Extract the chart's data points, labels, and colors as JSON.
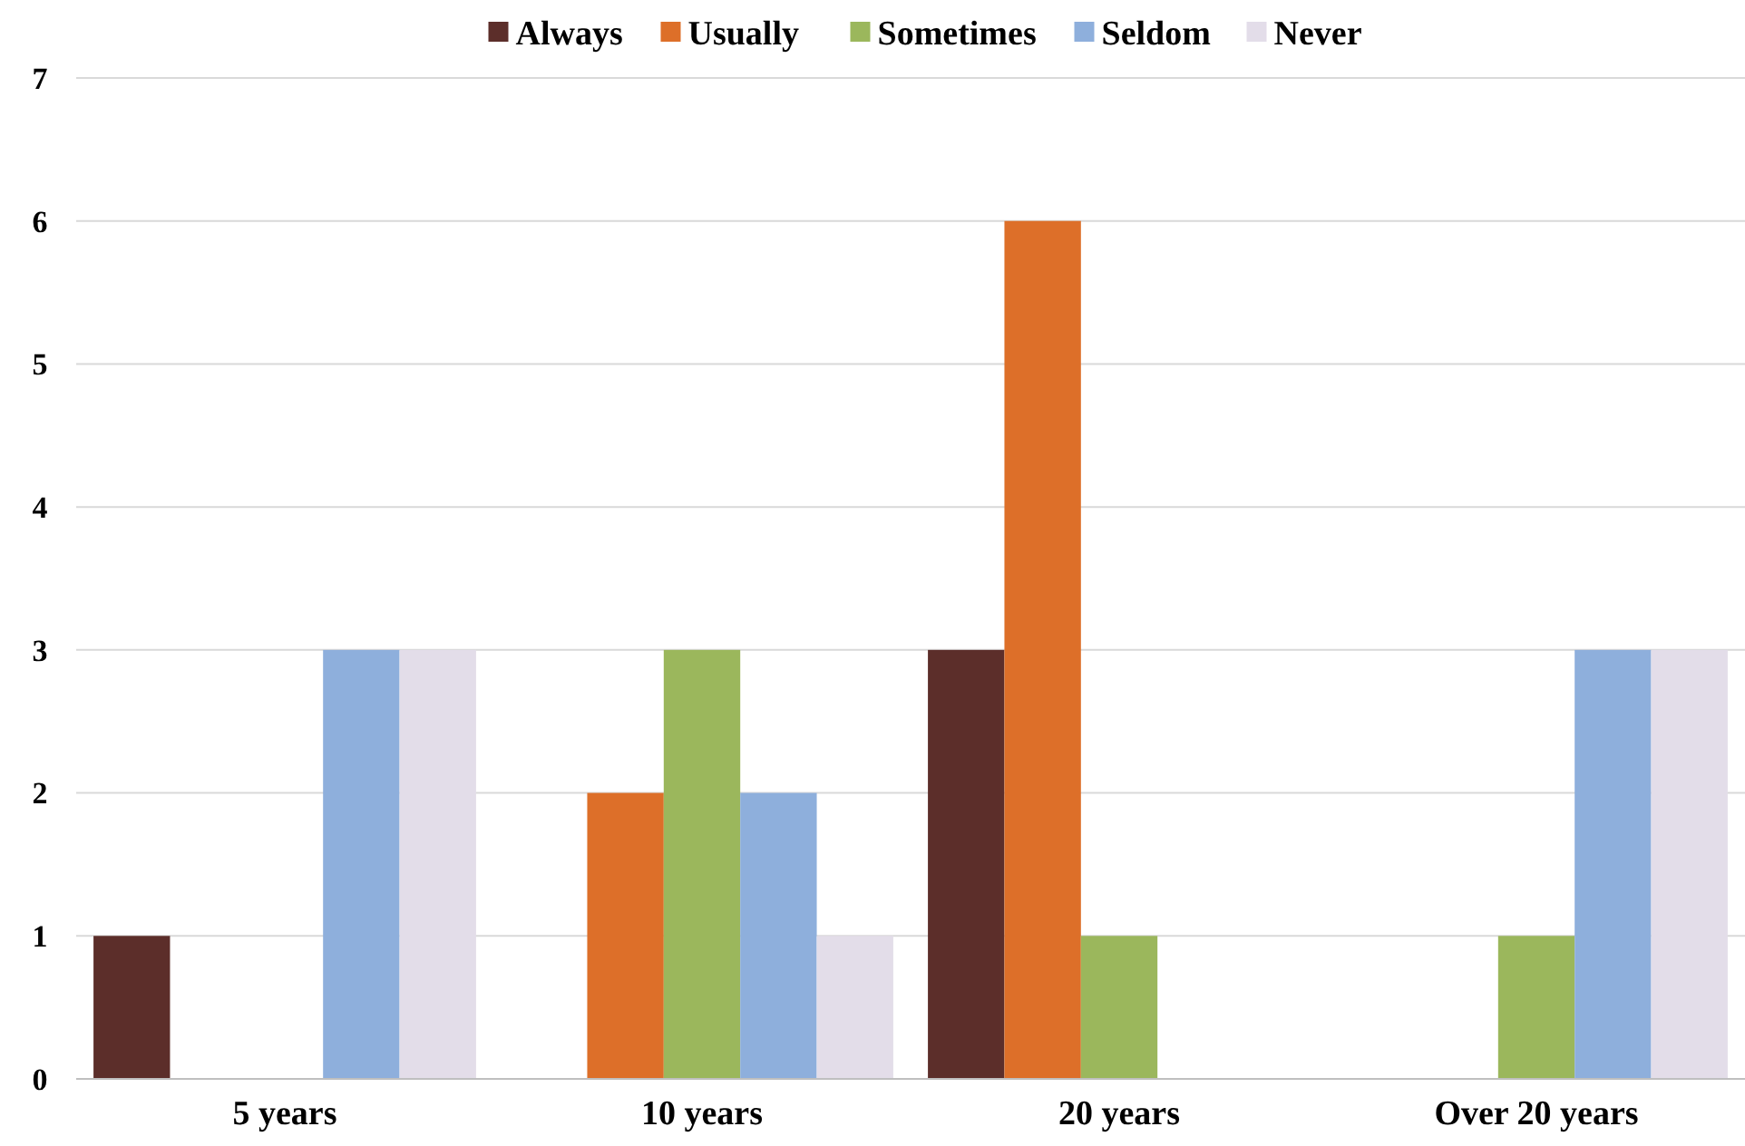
{
  "chart_data": {
    "type": "bar",
    "categories": [
      "5 years",
      "10 years",
      "20 years",
      "Over 20 years"
    ],
    "series": [
      {
        "name": "Always",
        "color": "#5c2e2a",
        "values": [
          1,
          0,
          3,
          0
        ]
      },
      {
        "name": "Usually",
        "color": "#dd6f29",
        "values": [
          0,
          2,
          6,
          0
        ]
      },
      {
        "name": "Sometimes",
        "color": "#9bb75c",
        "values": [
          0,
          3,
          1,
          1
        ]
      },
      {
        "name": "Seldom",
        "color": "#8eafdc",
        "values": [
          3,
          2,
          0,
          3
        ]
      },
      {
        "name": "Never",
        "color": "#e3dde9",
        "values": [
          3,
          1,
          0,
          3
        ]
      }
    ],
    "ylim": [
      0,
      7
    ],
    "yticks": [
      0,
      1,
      2,
      3,
      4,
      5,
      6,
      7
    ],
    "grid": "y",
    "legend": "top"
  }
}
